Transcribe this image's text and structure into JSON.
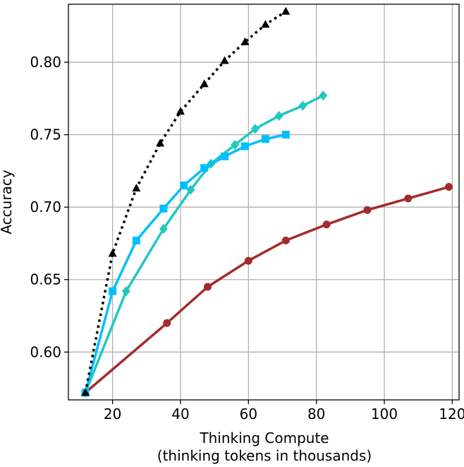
{
  "chart_data": {
    "type": "line",
    "title": "",
    "xlabel": [
      "Thinking Compute",
      "(thinking tokens in thousands)"
    ],
    "ylabel": "Accuracy",
    "xlim": [
      7,
      122
    ],
    "ylim": [
      0.567,
      0.84
    ],
    "xticks": [
      20,
      40,
      60,
      80,
      100,
      120
    ],
    "yticks": [
      0.6,
      0.65,
      0.7,
      0.75,
      0.8
    ],
    "xtick_labels": [
      "20",
      "40",
      "60",
      "80",
      "100",
      "120"
    ],
    "ytick_labels": [
      "0.60",
      "0.65",
      "0.70",
      "0.75",
      "0.80"
    ],
    "grid": true,
    "legend": "none",
    "series": [
      {
        "color": "#000000",
        "marker": "triangle",
        "linestyle": "dotted",
        "x": [
          12,
          20,
          27,
          34,
          40,
          47,
          53,
          59,
          65,
          71
        ],
        "y": [
          0.572,
          0.668,
          0.713,
          0.744,
          0.766,
          0.785,
          0.801,
          0.814,
          0.826,
          0.835
        ]
      },
      {
        "color": "#00bfff",
        "marker": "square",
        "linestyle": "solid",
        "x": [
          12,
          20,
          27,
          35,
          41,
          47,
          53,
          59,
          65,
          71
        ],
        "y": [
          0.572,
          0.642,
          0.677,
          0.699,
          0.715,
          0.727,
          0.735,
          0.742,
          0.747,
          0.75
        ]
      },
      {
        "color": "#20c8c0",
        "marker": "diamond",
        "linestyle": "solid",
        "x": [
          12,
          24,
          35,
          43,
          49,
          56,
          62,
          69,
          76,
          82
        ],
        "y": [
          0.572,
          0.642,
          0.685,
          0.712,
          0.73,
          0.743,
          0.754,
          0.763,
          0.77,
          0.777
        ]
      },
      {
        "color": "#a52a2a",
        "marker": "circle",
        "linestyle": "solid",
        "x": [
          12,
          36,
          48,
          60,
          71,
          83,
          95,
          107,
          119
        ],
        "y": [
          0.572,
          0.62,
          0.645,
          0.663,
          0.677,
          0.688,
          0.698,
          0.706,
          0.714
        ]
      }
    ]
  }
}
